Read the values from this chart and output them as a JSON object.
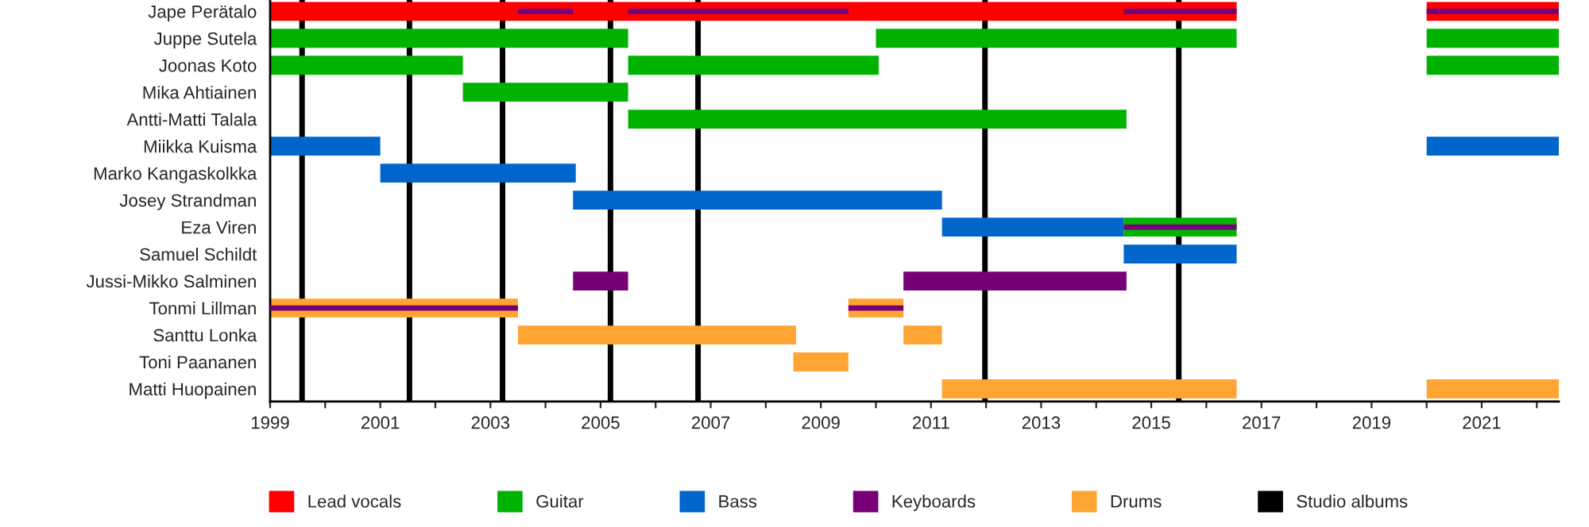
{
  "chart_data": {
    "type": "bar",
    "orientation": "horizontal",
    "categories": [
      "Jape Perätalo",
      "Juppe Sutela",
      "Joonas Koto",
      "Mika Ahtiainen",
      "Antti-Matti Talala",
      "Miikka Kuisma",
      "Marko Kangaskolkka",
      "Josey Strandman",
      "Eza Viren",
      "Samuel Schildt",
      "Jussi-Mikko Salminen",
      "Tonmi Lillman",
      "Santtu Lonka",
      "Toni Paananen",
      "Matti Huopainen"
    ],
    "series": [
      {
        "name": "Lead vocals",
        "color": "#ff0000",
        "values": [
          17.55,
          null,
          null,
          null,
          null,
          null,
          null,
          null,
          null,
          null,
          null,
          null,
          null,
          null,
          null
        ],
        "base": [
          1999,
          null,
          null,
          null,
          null,
          null,
          null,
          null,
          null,
          null,
          null,
          null,
          null,
          null,
          null
        ]
      },
      {
        "color": "#ff0000",
        "values": [
          2.4,
          null,
          null,
          null,
          null,
          null,
          null,
          null,
          null,
          null,
          null,
          null,
          null,
          null,
          null
        ],
        "base": [
          2020,
          null,
          null,
          null,
          null,
          null,
          null,
          null,
          null,
          null,
          null,
          null,
          null,
          null,
          null
        ]
      },
      {
        "name": "Guitar",
        "color": "#00b300",
        "values": [
          null,
          6.5,
          3.5,
          3,
          9.05,
          null,
          null,
          null,
          2.05,
          null,
          null,
          null,
          null,
          null,
          null
        ],
        "base": [
          null,
          1999,
          1999,
          2002.5,
          2005.5,
          null,
          null,
          null,
          2014.5,
          null,
          null,
          null,
          null,
          null,
          null
        ]
      },
      {
        "color": "#00b300",
        "values": [
          null,
          6.55,
          4.55,
          null,
          null,
          null,
          null,
          null,
          null,
          null,
          null,
          null,
          null,
          null,
          null
        ],
        "base": [
          null,
          2010,
          2005.5,
          null,
          null,
          null,
          null,
          null,
          null,
          null,
          null,
          null,
          null,
          null,
          null
        ]
      },
      {
        "color": "#00b300",
        "values": [
          null,
          2.4,
          2.4,
          null,
          null,
          null,
          null,
          null,
          null,
          null,
          null,
          null,
          null,
          null,
          null
        ],
        "base": [
          null,
          2020,
          2020,
          null,
          null,
          null,
          null,
          null,
          null,
          null,
          null,
          null,
          null,
          null,
          null
        ]
      },
      {
        "name": "Bass",
        "color": "#0066cc",
        "values": [
          null,
          null,
          null,
          null,
          null,
          2,
          3.55,
          6.7,
          3.3,
          2.05,
          null,
          null,
          null,
          null,
          null
        ],
        "base": [
          null,
          null,
          null,
          null,
          null,
          1999,
          2001,
          2004.5,
          2011.2,
          2014.5,
          null,
          null,
          null,
          null,
          null
        ]
      },
      {
        "color": "#0066cc",
        "values": [
          null,
          null,
          null,
          null,
          null,
          2.4,
          null,
          null,
          null,
          null,
          null,
          null,
          null,
          null,
          null
        ],
        "base": [
          null,
          null,
          null,
          null,
          null,
          2020,
          null,
          null,
          null,
          null,
          null,
          null,
          null,
          null,
          null
        ]
      },
      {
        "name": "Keyboards",
        "color": "#770077",
        "values": [
          null,
          null,
          null,
          null,
          null,
          null,
          null,
          null,
          null,
          null,
          1,
          null,
          null,
          null,
          null
        ],
        "base": [
          null,
          null,
          null,
          null,
          null,
          null,
          null,
          null,
          null,
          null,
          2004.5,
          null,
          null,
          null,
          null
        ]
      },
      {
        "color": "#770077",
        "values": [
          null,
          null,
          null,
          null,
          null,
          null,
          null,
          null,
          null,
          null,
          4.05,
          null,
          null,
          null,
          null
        ],
        "base": [
          null,
          null,
          null,
          null,
          null,
          null,
          null,
          null,
          null,
          null,
          2010.5,
          null,
          null,
          null,
          null
        ]
      },
      {
        "name": "Drums",
        "color": "#ffa533",
        "values": [
          null,
          null,
          null,
          null,
          null,
          null,
          null,
          null,
          null,
          null,
          null,
          4.5,
          5.05,
          1,
          5.35
        ],
        "base": [
          null,
          null,
          null,
          null,
          null,
          null,
          null,
          null,
          null,
          null,
          null,
          1999,
          2003.5,
          2008.5,
          2011.2
        ]
      },
      {
        "color": "#ffa533",
        "values": [
          null,
          null,
          null,
          null,
          null,
          null,
          null,
          null,
          null,
          null,
          null,
          1,
          0.7,
          null,
          2.4
        ],
        "base": [
          null,
          null,
          null,
          null,
          null,
          null,
          null,
          null,
          null,
          null,
          null,
          2009.5,
          2010.5,
          null,
          2020
        ]
      },
      {
        "color": "#770077",
        "values": [
          1,
          null,
          null,
          null,
          null,
          null,
          null,
          null,
          2.05,
          null,
          null,
          4.5,
          null,
          null,
          null
        ],
        "base": [
          2003.5,
          null,
          null,
          null,
          null,
          null,
          null,
          null,
          2014.5,
          null,
          null,
          1999,
          null,
          null,
          null
        ]
      },
      {
        "color": "#770077",
        "values": [
          4,
          null,
          null,
          null,
          null,
          null,
          null,
          null,
          null,
          null,
          null,
          1,
          null,
          null,
          null
        ],
        "base": [
          2005.5,
          null,
          null,
          null,
          null,
          null,
          null,
          null,
          null,
          null,
          null,
          2009.5,
          null,
          null,
          null
        ]
      },
      {
        "color": "#770077",
        "values": [
          2.05,
          null,
          null,
          null,
          null,
          null,
          null,
          null,
          null,
          null,
          null,
          null,
          null,
          null,
          null
        ],
        "base": [
          2014.5,
          null,
          null,
          null,
          null,
          null,
          null,
          null,
          null,
          null,
          null,
          null,
          null,
          null,
          null
        ]
      },
      {
        "color": "#770077",
        "values": [
          2.4,
          null,
          null,
          null,
          null,
          null,
          null,
          null,
          null,
          null,
          null,
          null,
          null,
          null,
          null
        ],
        "base": [
          2020,
          null,
          null,
          null,
          null,
          null,
          null,
          null,
          null,
          null,
          null,
          null,
          null,
          null,
          null
        ]
      }
    ],
    "ref_lines": [
      {
        "axis": "x",
        "value": 1999.58,
        "color": "#000000",
        "label": "Studio albums"
      },
      {
        "axis": "x",
        "value": 2001.53,
        "color": "#000000"
      },
      {
        "axis": "x",
        "value": 2003.22,
        "color": "#000000"
      },
      {
        "axis": "x",
        "value": 2005.18,
        "color": "#000000"
      },
      {
        "axis": "x",
        "value": 2006.77,
        "color": "#000000"
      },
      {
        "axis": "x",
        "value": 2011.98,
        "color": "#000000"
      },
      {
        "axis": "x",
        "value": 2015.5,
        "color": "#000000"
      }
    ],
    "xlim": [
      1999,
      2022.4
    ],
    "xticks": [
      1999,
      {
        "value": 2000,
        "label": null
      },
      2001,
      {
        "value": 2002,
        "label": null
      },
      2003,
      {
        "value": 2004,
        "label": null
      },
      2005,
      {
        "value": 2006,
        "label": null
      },
      2007,
      {
        "value": 2008,
        "label": null
      },
      2009,
      {
        "value": 2010,
        "label": null
      },
      2011,
      {
        "value": 2012,
        "label": null
      },
      2013,
      {
        "value": 2014,
        "label": null
      },
      2015,
      {
        "value": 2016,
        "label": null
      },
      2017,
      {
        "value": 2018,
        "label": null
      },
      2019,
      {
        "value": 2020,
        "label": null
      },
      2021,
      {
        "value": 2022,
        "label": null
      }
    ],
    "grid": false,
    "legend": "bottom"
  }
}
